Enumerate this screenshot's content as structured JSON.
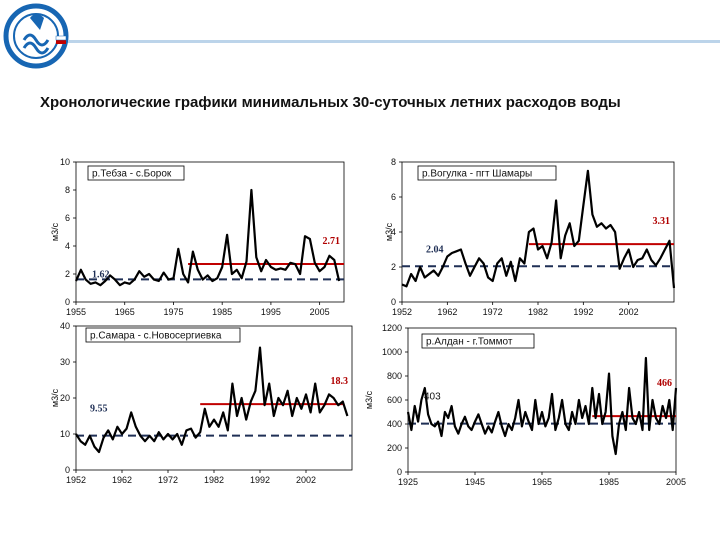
{
  "page": {
    "title": "Хронологические графики минимальных 30-суточных летних расходов воды"
  },
  "colors": {
    "series": "#000000",
    "baseline_mean": "#1f2f55",
    "recent_mean": "#c00000",
    "axis": "#000000",
    "logo_blue": "#1766b3"
  },
  "chart_data": [
    {
      "id": "tebza",
      "type": "line",
      "caption": "р.Тебза - с.Борок",
      "ylabel": "м3/с",
      "ylim": [
        0,
        10
      ],
      "yticks": [
        0,
        2,
        4,
        6,
        8,
        10
      ],
      "xlim": [
        1955,
        2010
      ],
      "xticks": [
        1955,
        1965,
        1975,
        1985,
        1995,
        2005
      ],
      "baseline": {
        "value": 1.62,
        "label": "1.62",
        "from": 1955,
        "to": 2010
      },
      "recent": {
        "value": 2.71,
        "label": "2.71",
        "from": 1978,
        "to": 2010
      },
      "x": [
        1955,
        1956,
        1957,
        1958,
        1959,
        1960,
        1961,
        1962,
        1963,
        1964,
        1965,
        1966,
        1967,
        1968,
        1969,
        1970,
        1971,
        1972,
        1973,
        1974,
        1975,
        1976,
        1977,
        1978,
        1979,
        1980,
        1981,
        1982,
        1983,
        1984,
        1985,
        1986,
        1987,
        1988,
        1989,
        1990,
        1991,
        1992,
        1993,
        1994,
        1995,
        1996,
        1997,
        1998,
        1999,
        2000,
        2001,
        2002,
        2003,
        2004,
        2005,
        2006,
        2007,
        2008,
        2009
      ],
      "y": [
        1.5,
        2.3,
        1.6,
        1.3,
        1.4,
        1.2,
        1.5,
        1.9,
        1.6,
        1.2,
        1.4,
        1.3,
        1.6,
        2.2,
        1.8,
        2.0,
        1.6,
        1.5,
        2.1,
        1.6,
        1.7,
        3.8,
        2.0,
        1.4,
        3.6,
        2.3,
        1.6,
        1.9,
        1.5,
        1.7,
        2.5,
        4.8,
        2.0,
        2.3,
        1.7,
        2.9,
        8.0,
        3.2,
        2.2,
        3.0,
        2.5,
        2.3,
        2.4,
        2.3,
        2.8,
        2.7,
        2.0,
        4.7,
        4.5,
        2.8,
        2.2,
        2.5,
        3.3,
        3.0,
        1.5
      ]
    },
    {
      "id": "vogulka",
      "type": "line",
      "caption": "р.Вогулка - пгт Шамары",
      "ylabel": "м3/с",
      "ylim": [
        0,
        8
      ],
      "yticks": [
        0,
        2,
        4,
        6,
        8
      ],
      "xlim": [
        1952,
        2012
      ],
      "xticks": [
        1952,
        1962,
        1972,
        1982,
        1992,
        2002
      ],
      "baseline": {
        "value": 2.04,
        "label": "2.04",
        "from": 1952,
        "to": 2012
      },
      "recent": {
        "value": 3.31,
        "label": "3.31",
        "from": 1980,
        "to": 2012
      },
      "x": [
        1952,
        1953,
        1954,
        1955,
        1956,
        1957,
        1958,
        1959,
        1960,
        1961,
        1962,
        1963,
        1964,
        1965,
        1966,
        1967,
        1968,
        1969,
        1970,
        1971,
        1972,
        1973,
        1974,
        1975,
        1976,
        1977,
        1978,
        1979,
        1980,
        1981,
        1982,
        1983,
        1984,
        1985,
        1986,
        1987,
        1988,
        1989,
        1990,
        1991,
        1992,
        1993,
        1994,
        1995,
        1996,
        1997,
        1998,
        1999,
        2000,
        2001,
        2002,
        2003,
        2004,
        2005,
        2006,
        2007,
        2008,
        2009,
        2010,
        2011,
        2012
      ],
      "y": [
        1.0,
        0.9,
        1.6,
        1.2,
        2.0,
        1.4,
        1.6,
        1.8,
        1.5,
        2.0,
        2.6,
        2.8,
        2.9,
        3.0,
        2.2,
        1.5,
        2.0,
        2.5,
        2.2,
        1.4,
        1.2,
        2.2,
        2.5,
        1.5,
        2.3,
        1.2,
        2.5,
        2.2,
        4.0,
        4.2,
        3.0,
        3.2,
        2.5,
        3.4,
        5.8,
        2.5,
        3.8,
        4.5,
        3.2,
        3.5,
        5.5,
        7.5,
        5.0,
        4.3,
        4.5,
        4.2,
        4.4,
        4.0,
        1.9,
        2.5,
        3.0,
        2.0,
        2.4,
        2.5,
        3.0,
        2.4,
        2.1,
        2.5,
        3.0,
        3.5,
        0.8
      ]
    },
    {
      "id": "samara",
      "type": "line",
      "caption": "р.Самара - с.Новосергиевка",
      "ylabel": "м3/с",
      "ylim": [
        0,
        40
      ],
      "yticks": [
        0,
        10,
        20,
        30,
        40
      ],
      "xlim": [
        1952,
        2012
      ],
      "xticks": [
        1952,
        1962,
        1972,
        1982,
        1992,
        2002
      ],
      "baseline": {
        "value": 9.55,
        "label": "9.55",
        "from": 1952,
        "to": 2012
      },
      "recent": {
        "value": 18.3,
        "label": "18.3",
        "from": 1979,
        "to": 2010
      },
      "x": [
        1952,
        1953,
        1954,
        1955,
        1956,
        1957,
        1958,
        1959,
        1960,
        1961,
        1962,
        1963,
        1964,
        1965,
        1966,
        1967,
        1968,
        1969,
        1970,
        1971,
        1972,
        1973,
        1974,
        1975,
        1976,
        1977,
        1978,
        1979,
        1980,
        1981,
        1982,
        1983,
        1984,
        1985,
        1986,
        1987,
        1988,
        1989,
        1990,
        1991,
        1992,
        1993,
        1994,
        1995,
        1996,
        1997,
        1998,
        1999,
        2000,
        2001,
        2002,
        2003,
        2004,
        2005,
        2006,
        2007,
        2008,
        2009,
        2010,
        2011
      ],
      "y": [
        10.0,
        8.0,
        7.0,
        9.5,
        6.5,
        5.0,
        9.0,
        11.0,
        8.5,
        12.0,
        10.0,
        11.5,
        16.0,
        12.0,
        9.5,
        8.0,
        9.5,
        8.0,
        10.5,
        8.5,
        10.0,
        8.5,
        10.0,
        7.0,
        11.0,
        11.5,
        9.0,
        10.5,
        17.0,
        12.0,
        14.0,
        12.0,
        16.0,
        11.0,
        24.0,
        15.0,
        20.0,
        14.0,
        19.0,
        22.0,
        34.0,
        18.0,
        24.0,
        15.0,
        20.0,
        18.0,
        22.0,
        15.0,
        20.0,
        17.0,
        21.0,
        16.0,
        24.0,
        16.0,
        18.0,
        21.0,
        20.0,
        18.0,
        19.0,
        15.0
      ]
    },
    {
      "id": "aldan",
      "type": "line",
      "caption": "р.Алдан - г.Томмот",
      "ylabel": "м3/с",
      "ylim": [
        0,
        1200
      ],
      "yticks": [
        0,
        200,
        400,
        600,
        800,
        1000,
        1200
      ],
      "xlim": [
        1925,
        2005
      ],
      "xticks": [
        1925,
        1945,
        1965,
        1985,
        2005
      ],
      "baseline": {
        "value": 403,
        "label": "403",
        "from": 1925,
        "to": 2005
      },
      "recent": {
        "value": 466,
        "label": "466",
        "from": 1980,
        "to": 2005
      },
      "x": [
        1925,
        1926,
        1927,
        1928,
        1929,
        1930,
        1931,
        1932,
        1933,
        1934,
        1935,
        1936,
        1937,
        1938,
        1939,
        1940,
        1941,
        1942,
        1943,
        1944,
        1945,
        1946,
        1947,
        1948,
        1949,
        1950,
        1951,
        1952,
        1953,
        1954,
        1955,
        1956,
        1957,
        1958,
        1959,
        1960,
        1961,
        1962,
        1963,
        1964,
        1965,
        1966,
        1967,
        1968,
        1969,
        1970,
        1971,
        1972,
        1973,
        1974,
        1975,
        1976,
        1977,
        1978,
        1979,
        1980,
        1981,
        1982,
        1983,
        1984,
        1985,
        1986,
        1987,
        1988,
        1989,
        1990,
        1991,
        1992,
        1993,
        1994,
        1995,
        1996,
        1997,
        1998,
        1999,
        2000,
        2001,
        2002,
        2003,
        2004,
        2005
      ],
      "y": [
        500,
        350,
        550,
        420,
        600,
        700,
        480,
        400,
        380,
        420,
        300,
        500,
        450,
        550,
        380,
        320,
        400,
        460,
        380,
        350,
        420,
        480,
        400,
        320,
        380,
        330,
        420,
        500,
        380,
        300,
        400,
        350,
        450,
        600,
        380,
        500,
        420,
        350,
        600,
        400,
        500,
        380,
        450,
        650,
        350,
        450,
        600,
        400,
        350,
        500,
        400,
        600,
        450,
        550,
        400,
        700,
        450,
        650,
        400,
        500,
        820,
        300,
        150,
        400,
        500,
        350,
        700,
        450,
        400,
        500,
        350,
        950,
        350,
        600,
        450,
        400,
        550,
        450,
        600,
        350,
        700
      ]
    }
  ]
}
